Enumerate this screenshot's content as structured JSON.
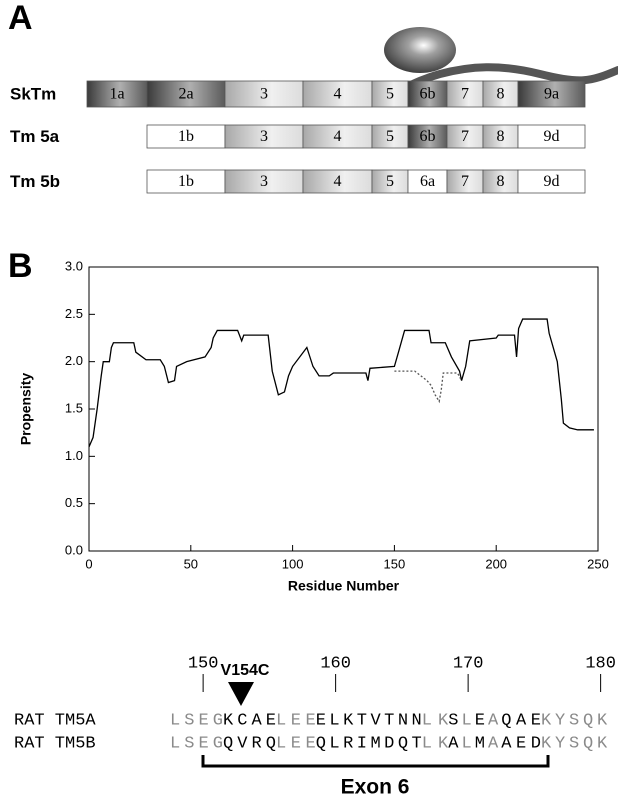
{
  "panel_a": {
    "label": "A",
    "rows": [
      {
        "name": "SkTm",
        "exons": [
          "1a",
          "2a",
          "3",
          "4",
          "5",
          "6b",
          "7",
          "8",
          "9a"
        ]
      },
      {
        "name": "Tm 5a",
        "exons": [
          "1b",
          "3",
          "4",
          "5",
          "6b",
          "7",
          "8",
          "9d"
        ]
      },
      {
        "name": "Tm 5b",
        "exons": [
          "1b",
          "3",
          "4",
          "5",
          "6a",
          "7",
          "8",
          "9d"
        ]
      }
    ]
  },
  "chart_data": {
    "type": "line",
    "panel_label": "B",
    "xlabel": "Residue Number",
    "ylabel": "Propensity",
    "xlim": [
      0,
      250
    ],
    "ylim": [
      0,
      3
    ],
    "xticks": [
      0,
      50,
      100,
      150,
      200,
      250
    ],
    "yticks": [
      {
        "value": 0,
        "label": "0.0"
      },
      {
        "value": 0.5,
        "label": "0.5"
      },
      {
        "value": 1,
        "label": "1.0"
      },
      {
        "value": 1.5,
        "label": "1.5"
      },
      {
        "value": 2,
        "label": "2.0"
      },
      {
        "value": 2.5,
        "label": "2.5"
      },
      {
        "value": 3,
        "label": "3.0"
      }
    ],
    "series": [
      {
        "color": "#000000",
        "style": "solid",
        "x": [
          0,
          2,
          4,
          6,
          7,
          10,
          11,
          12,
          22,
          23,
          28,
          35,
          37,
          39,
          42,
          43,
          48,
          57,
          60,
          61,
          63,
          73,
          75,
          76,
          88,
          90,
          93,
          96,
          98,
          100,
          107,
          110,
          113,
          118,
          120,
          136,
          137,
          138,
          150,
          152,
          155,
          167,
          168,
          175,
          178,
          182,
          183,
          185,
          187,
          200,
          201,
          209,
          210,
          211,
          212,
          213,
          225,
          226,
          230,
          232,
          233,
          236,
          240,
          248
        ],
        "values": [
          1.1,
          1.2,
          1.5,
          1.85,
          2.0,
          2.0,
          2.15,
          2.2,
          2.2,
          2.1,
          2.02,
          2.02,
          1.95,
          1.78,
          1.8,
          1.95,
          2.0,
          2.05,
          2.15,
          2.25,
          2.33,
          2.33,
          2.22,
          2.28,
          2.28,
          1.9,
          1.65,
          1.68,
          1.85,
          1.95,
          2.15,
          1.95,
          1.85,
          1.85,
          1.88,
          1.88,
          1.8,
          1.93,
          1.95,
          2.1,
          2.33,
          2.33,
          2.2,
          2.2,
          2.05,
          1.9,
          1.8,
          1.95,
          2.22,
          2.25,
          2.28,
          2.28,
          2.05,
          2.35,
          2.4,
          2.45,
          2.45,
          2.3,
          2.0,
          1.6,
          1.35,
          1.3,
          1.28,
          1.28
        ]
      },
      {
        "color": "#555555",
        "style": "dotted",
        "x": [
          150,
          155,
          160,
          163,
          166,
          168,
          170,
          172,
          173,
          174,
          176,
          181,
          183
        ],
        "values": [
          1.9,
          1.9,
          1.9,
          1.85,
          1.8,
          1.75,
          1.65,
          1.58,
          1.7,
          1.88,
          1.88,
          1.88,
          1.8
        ]
      }
    ]
  },
  "panel_c": {
    "residue_ticks": [
      150,
      160,
      170,
      180
    ],
    "first_residue": 148,
    "mutation": "V154C",
    "exon_label": "Exon 6",
    "rows": [
      {
        "name": "RAT TM5A",
        "segments": [
          {
            "text": "LSEG",
            "highlight": false
          },
          {
            "text": "KCAE",
            "highlight": true
          },
          {
            "text": "LEE",
            "highlight": false
          },
          {
            "text": "ELKTVTNN",
            "highlight": true
          },
          {
            "text": "LK",
            "highlight": false
          },
          {
            "text": "S",
            "highlight": true
          },
          {
            "text": "L",
            "highlight": false
          },
          {
            "text": "E",
            "highlight": true
          },
          {
            "text": "A",
            "highlight": false
          },
          {
            "text": "QAE",
            "highlight": true
          },
          {
            "text": "KYSQK",
            "highlight": false
          }
        ]
      },
      {
        "name": "RAT TM5B",
        "segments": [
          {
            "text": "LSEG",
            "highlight": false
          },
          {
            "text": "QVRQ",
            "highlight": true
          },
          {
            "text": "LEE",
            "highlight": false
          },
          {
            "text": "QLRIMDQT",
            "highlight": true
          },
          {
            "text": "LK",
            "highlight": false
          },
          {
            "text": "A",
            "highlight": true
          },
          {
            "text": "L",
            "highlight": false
          },
          {
            "text": "M",
            "highlight": true
          },
          {
            "text": "A",
            "highlight": false
          },
          {
            "text": "AED",
            "highlight": true
          },
          {
            "text": "KYSQK",
            "highlight": false
          }
        ]
      }
    ]
  }
}
